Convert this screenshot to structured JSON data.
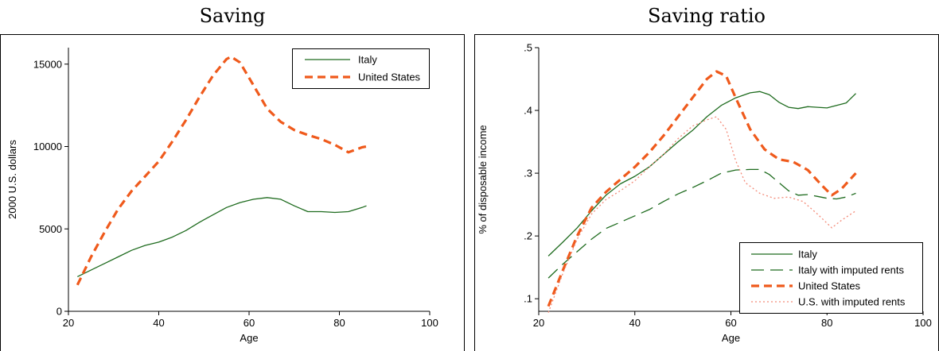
{
  "chart_data": [
    {
      "type": "line",
      "title": "Saving",
      "xlabel": "Age",
      "ylabel": "2000 U.S. dollars",
      "xlim": [
        20,
        100
      ],
      "ylim": [
        0,
        16000
      ],
      "xticks": [
        20,
        40,
        60,
        80,
        100
      ],
      "yticks": [
        0,
        5000,
        10000,
        15000
      ],
      "xtick_labels": [
        "20",
        "40",
        "60",
        "80",
        "100"
      ],
      "ytick_labels": [
        "0",
        "5000",
        "10000",
        "15000"
      ],
      "legend_position": "top-right",
      "series": [
        {
          "name": "Italy",
          "color": "#1e6b1e",
          "style": "solid",
          "x": [
            22,
            25,
            28,
            31,
            34,
            37,
            40,
            43,
            46,
            49,
            52,
            55,
            58,
            61,
            64,
            67,
            70,
            73,
            76,
            79,
            82,
            85,
            86
          ],
          "y": [
            2100,
            2500,
            2900,
            3300,
            3700,
            4000,
            4200,
            4500,
            4900,
            5400,
            5850,
            6300,
            6600,
            6800,
            6900,
            6800,
            6400,
            6050,
            6050,
            6000,
            6050,
            6300,
            6400
          ]
        },
        {
          "name": "United States",
          "color": "#ef5a1c",
          "style": "dashed",
          "x": [
            22,
            25,
            28,
            31,
            34,
            37,
            40,
            43,
            46,
            49,
            52,
            55,
            56,
            58,
            61,
            64,
            67,
            70,
            73,
            76,
            79,
            82,
            85,
            86
          ],
          "y": [
            1600,
            3300,
            4800,
            6200,
            7300,
            8200,
            9100,
            10300,
            11600,
            13000,
            14300,
            15300,
            15450,
            15100,
            13700,
            12300,
            11500,
            11000,
            10700,
            10450,
            10100,
            9650,
            9950,
            10000
          ]
        }
      ]
    },
    {
      "type": "line",
      "title": "Saving ratio",
      "xlabel": "Age",
      "ylabel": "% of disposable income",
      "xlim": [
        20,
        100
      ],
      "ylim": [
        0.08,
        0.5
      ],
      "xticks": [
        20,
        40,
        60,
        80,
        100
      ],
      "yticks": [
        0.1,
        0.2,
        0.3,
        0.4,
        0.5
      ],
      "xtick_labels": [
        "20",
        "40",
        "60",
        "80",
        "100"
      ],
      "ytick_labels": [
        ".1",
        ".2",
        ".3",
        ".4",
        ".5"
      ],
      "legend_position": "bottom-right",
      "series": [
        {
          "name": "Italy",
          "color": "#1e6b1e",
          "style": "solid",
          "x": [
            22,
            25,
            28,
            31,
            34,
            37,
            40,
            43,
            46,
            49,
            52,
            55,
            58,
            61,
            64,
            66,
            68,
            70,
            72,
            74,
            76,
            78,
            80,
            82,
            84,
            86
          ],
          "y": [
            0.168,
            0.19,
            0.213,
            0.24,
            0.265,
            0.283,
            0.295,
            0.31,
            0.33,
            0.35,
            0.368,
            0.39,
            0.408,
            0.42,
            0.428,
            0.43,
            0.425,
            0.413,
            0.405,
            0.403,
            0.406,
            0.405,
            0.404,
            0.408,
            0.412,
            0.427
          ]
        },
        {
          "name": "Italy with imputed rents",
          "color": "#1e6b1e",
          "style": "longdash",
          "x": [
            22,
            25,
            28,
            31,
            34,
            37,
            40,
            43,
            46,
            49,
            52,
            55,
            58,
            61,
            64,
            66,
            68,
            70,
            72,
            74,
            76,
            78,
            80,
            82,
            84,
            86
          ],
          "y": [
            0.133,
            0.155,
            0.175,
            0.195,
            0.212,
            0.222,
            0.232,
            0.242,
            0.255,
            0.267,
            0.277,
            0.288,
            0.3,
            0.305,
            0.306,
            0.306,
            0.298,
            0.285,
            0.272,
            0.265,
            0.266,
            0.263,
            0.26,
            0.259,
            0.262,
            0.268
          ]
        },
        {
          "name": "United States",
          "color": "#ef5a1c",
          "style": "dashed",
          "x": [
            22,
            25,
            28,
            31,
            34,
            37,
            40,
            43,
            46,
            49,
            52,
            55,
            57,
            59,
            61,
            64,
            67,
            70,
            73,
            76,
            79,
            81,
            83,
            86
          ],
          "y": [
            0.088,
            0.145,
            0.2,
            0.245,
            0.27,
            0.29,
            0.31,
            0.333,
            0.36,
            0.39,
            0.42,
            0.45,
            0.462,
            0.455,
            0.42,
            0.37,
            0.338,
            0.322,
            0.318,
            0.305,
            0.28,
            0.265,
            0.275,
            0.3
          ]
        },
        {
          "name": "U.S. with imputed rents",
          "color": "#f48a78",
          "style": "dotted",
          "x": [
            22,
            25,
            28,
            31,
            34,
            37,
            40,
            43,
            46,
            49,
            52,
            55,
            57,
            59,
            61,
            63,
            66,
            69,
            72,
            75,
            78,
            81,
            83,
            86
          ],
          "y": [
            0.078,
            0.14,
            0.195,
            0.235,
            0.258,
            0.272,
            0.288,
            0.31,
            0.33,
            0.355,
            0.375,
            0.385,
            0.39,
            0.37,
            0.32,
            0.285,
            0.268,
            0.26,
            0.262,
            0.255,
            0.235,
            0.213,
            0.225,
            0.24
          ]
        }
      ]
    }
  ]
}
